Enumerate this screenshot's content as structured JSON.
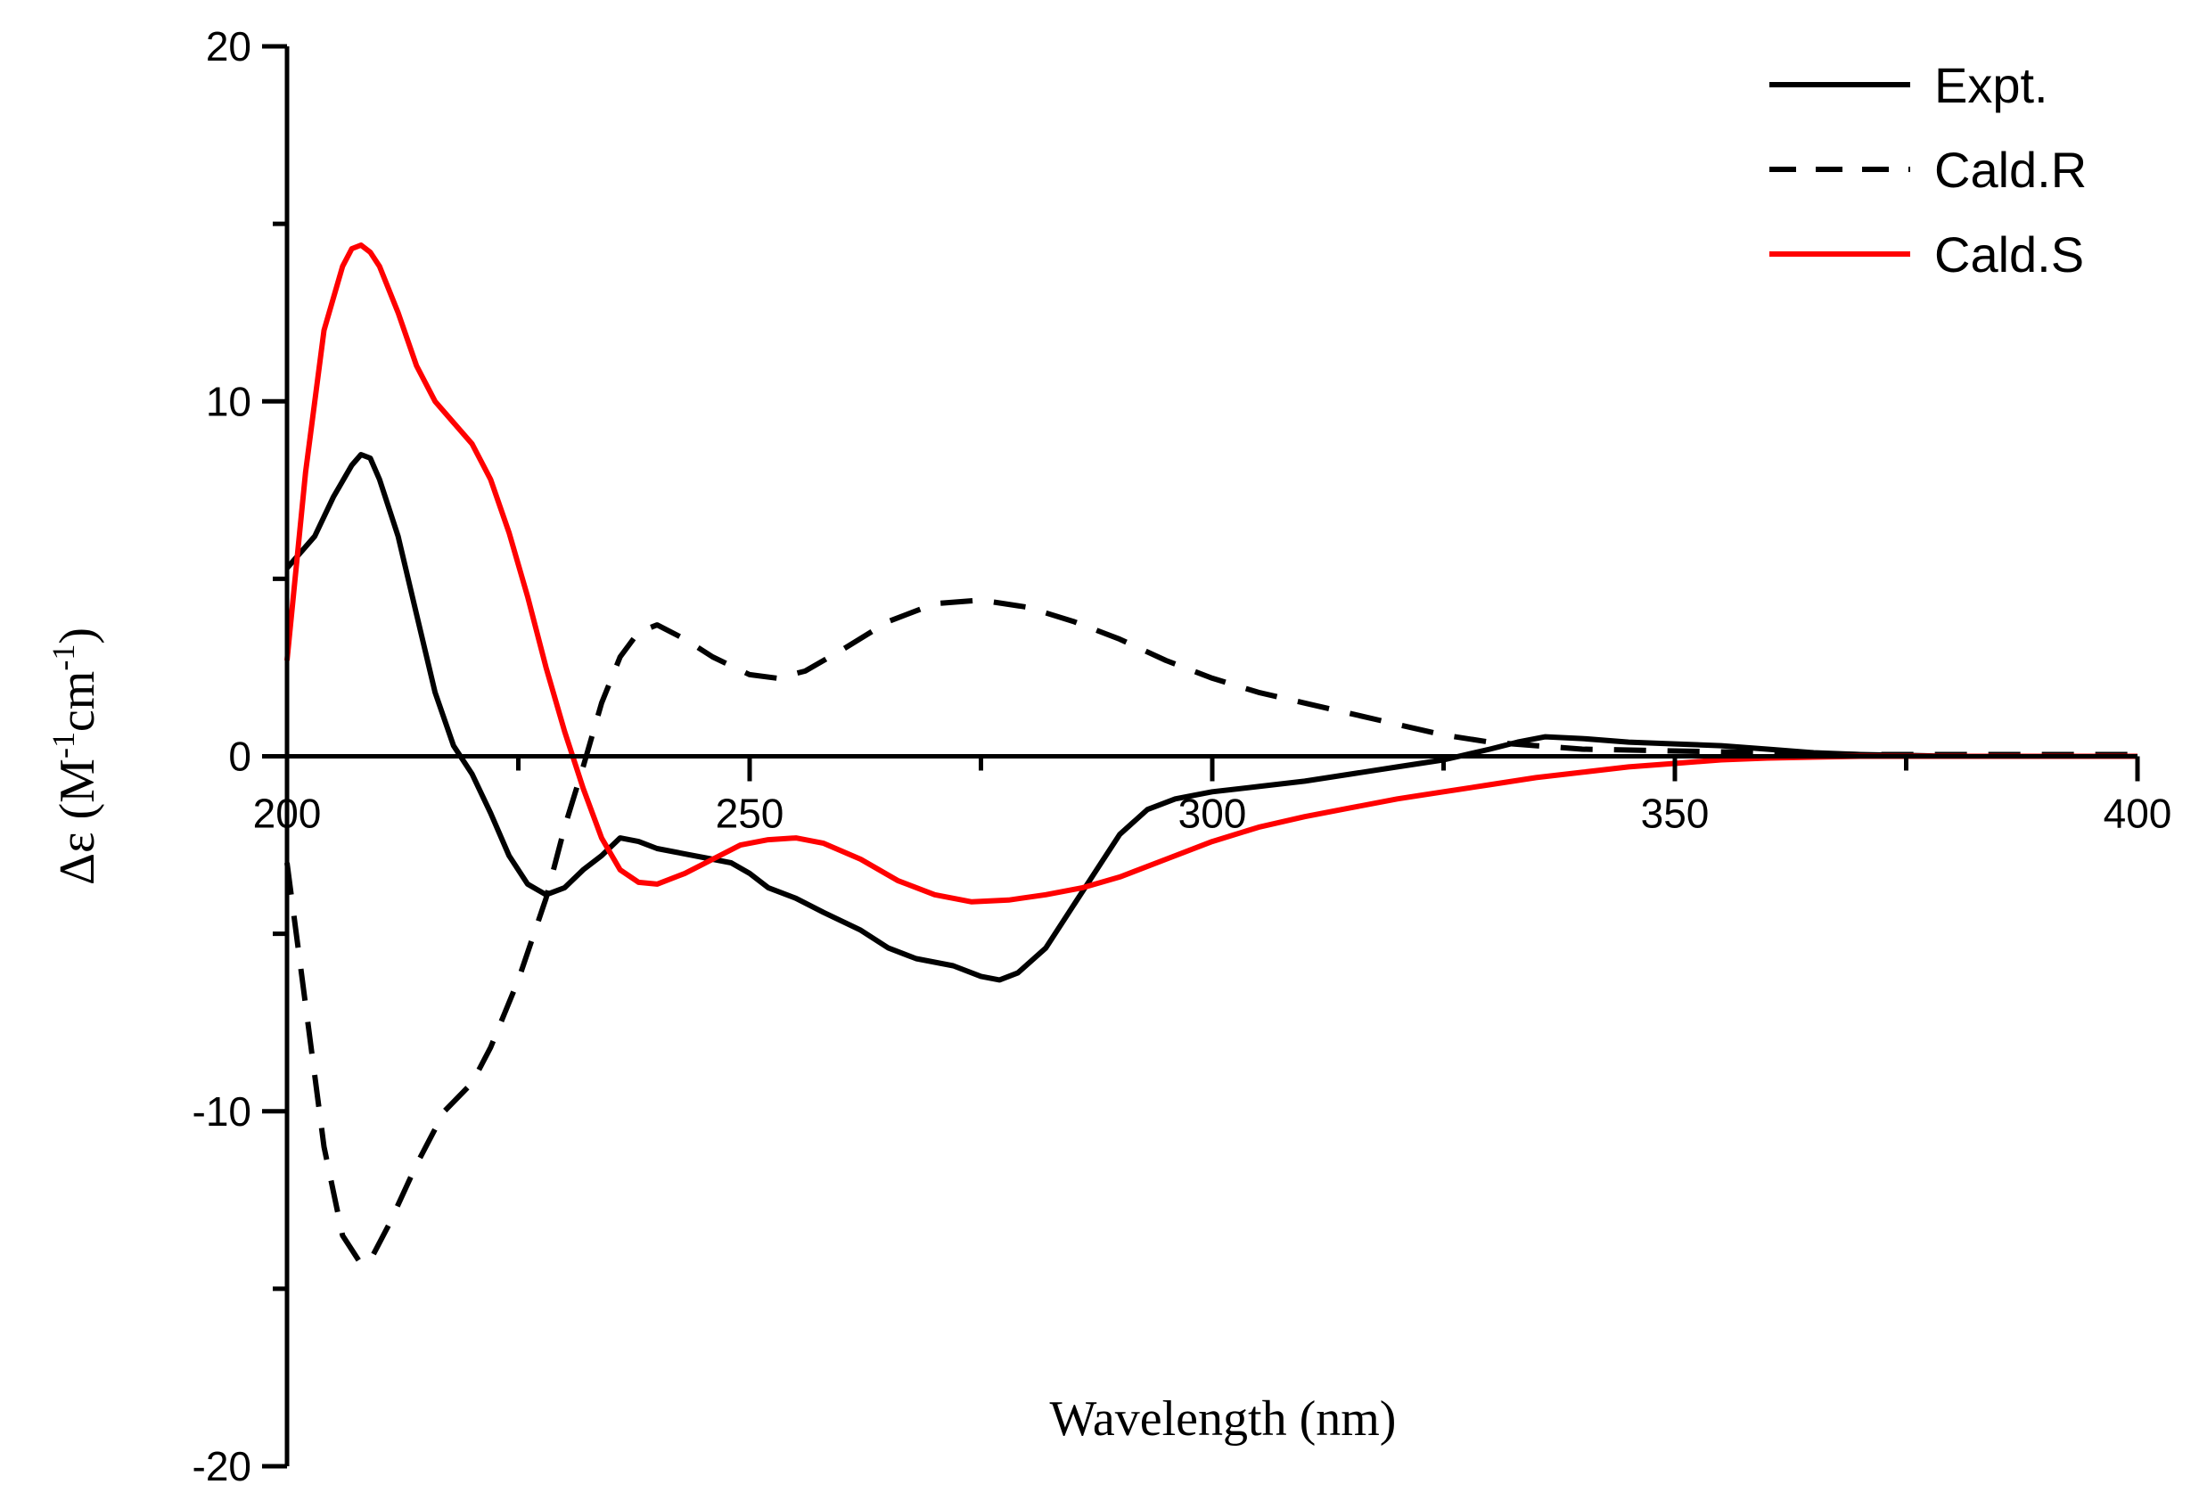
{
  "chart_data": {
    "type": "line",
    "xlabel": "Wavelength (nm)",
    "ylabel": {
      "prefix": "Δε (M",
      "sup1": "-1",
      "middle": "cm",
      "sup2": "-1",
      "suffix": ")"
    },
    "xlim": [
      200,
      400
    ],
    "ylim": [
      -20,
      20
    ],
    "x_ticks": [
      200,
      250,
      300,
      350,
      400
    ],
    "y_ticks": [
      -20,
      -10,
      0,
      10,
      20
    ],
    "legend_position": "top-right",
    "grid": false,
    "series": [
      {
        "name": "Expt.",
        "color": "#000000",
        "dash": "solid",
        "points": [
          [
            200,
            5.3
          ],
          [
            203,
            6.2
          ],
          [
            205,
            7.3
          ],
          [
            207,
            8.2
          ],
          [
            208,
            8.5
          ],
          [
            209,
            8.4
          ],
          [
            210,
            7.8
          ],
          [
            212,
            6.2
          ],
          [
            214,
            4.0
          ],
          [
            216,
            1.8
          ],
          [
            218,
            0.3
          ],
          [
            220,
            -0.5
          ],
          [
            222,
            -1.6
          ],
          [
            224,
            -2.8
          ],
          [
            226,
            -3.6
          ],
          [
            228,
            -3.9
          ],
          [
            230,
            -3.7
          ],
          [
            232,
            -3.2
          ],
          [
            234,
            -2.8
          ],
          [
            236,
            -2.3
          ],
          [
            238,
            -2.4
          ],
          [
            240,
            -2.6
          ],
          [
            242,
            -2.7
          ],
          [
            245,
            -2.85
          ],
          [
            248,
            -3.0
          ],
          [
            250,
            -3.3
          ],
          [
            252,
            -3.7
          ],
          [
            255,
            -4.0
          ],
          [
            258,
            -4.4
          ],
          [
            262,
            -4.9
          ],
          [
            265,
            -5.4
          ],
          [
            268,
            -5.7
          ],
          [
            272,
            -5.9
          ],
          [
            275,
            -6.2
          ],
          [
            277,
            -6.3
          ],
          [
            279,
            -6.1
          ],
          [
            282,
            -5.4
          ],
          [
            285,
            -4.2
          ],
          [
            288,
            -3.0
          ],
          [
            290,
            -2.2
          ],
          [
            293,
            -1.5
          ],
          [
            296,
            -1.2
          ],
          [
            300,
            -1.0
          ],
          [
            305,
            -0.85
          ],
          [
            310,
            -0.7
          ],
          [
            315,
            -0.5
          ],
          [
            320,
            -0.3
          ],
          [
            325,
            -0.1
          ],
          [
            330,
            0.2
          ],
          [
            333,
            0.4
          ],
          [
            336,
            0.55
          ],
          [
            340,
            0.5
          ],
          [
            345,
            0.4
          ],
          [
            350,
            0.35
          ],
          [
            355,
            0.3
          ],
          [
            360,
            0.2
          ],
          [
            365,
            0.1
          ],
          [
            370,
            0.05
          ],
          [
            380,
            0.0
          ],
          [
            390,
            0.0
          ],
          [
            400,
            0.0
          ]
        ]
      },
      {
        "name": "Cald.R",
        "color": "#000000",
        "dash": "dashed",
        "points": [
          [
            200,
            -3.0
          ],
          [
            202,
            -7.0
          ],
          [
            204,
            -11.0
          ],
          [
            206,
            -13.5
          ],
          [
            208,
            -14.3
          ],
          [
            209,
            -14.2
          ],
          [
            211,
            -13.2
          ],
          [
            214,
            -11.5
          ],
          [
            217,
            -10.0
          ],
          [
            220,
            -9.2
          ],
          [
            222,
            -8.2
          ],
          [
            225,
            -6.3
          ],
          [
            228,
            -4.0
          ],
          [
            230,
            -2.0
          ],
          [
            232,
            -0.3
          ],
          [
            234,
            1.5
          ],
          [
            236,
            2.8
          ],
          [
            238,
            3.5
          ],
          [
            240,
            3.7
          ],
          [
            243,
            3.3
          ],
          [
            246,
            2.8
          ],
          [
            250,
            2.3
          ],
          [
            253,
            2.2
          ],
          [
            256,
            2.4
          ],
          [
            260,
            3.0
          ],
          [
            265,
            3.8
          ],
          [
            270,
            4.3
          ],
          [
            275,
            4.4
          ],
          [
            280,
            4.2
          ],
          [
            285,
            3.8
          ],
          [
            290,
            3.3
          ],
          [
            295,
            2.7
          ],
          [
            300,
            2.2
          ],
          [
            305,
            1.8
          ],
          [
            310,
            1.5
          ],
          [
            315,
            1.2
          ],
          [
            320,
            0.9
          ],
          [
            325,
            0.6
          ],
          [
            330,
            0.4
          ],
          [
            335,
            0.3
          ],
          [
            340,
            0.2
          ],
          [
            350,
            0.15
          ],
          [
            360,
            0.1
          ],
          [
            370,
            0.05
          ],
          [
            380,
            0.05
          ],
          [
            390,
            0.05
          ],
          [
            400,
            0.05
          ]
        ]
      },
      {
        "name": "Cald.S",
        "color": "#ff0000",
        "dash": "solid",
        "points": [
          [
            200,
            2.7
          ],
          [
            202,
            8.0
          ],
          [
            204,
            12.0
          ],
          [
            206,
            13.8
          ],
          [
            207,
            14.3
          ],
          [
            208,
            14.4
          ],
          [
            209,
            14.2
          ],
          [
            210,
            13.8
          ],
          [
            212,
            12.5
          ],
          [
            214,
            11.0
          ],
          [
            216,
            10.0
          ],
          [
            218,
            9.4
          ],
          [
            220,
            8.8
          ],
          [
            222,
            7.8
          ],
          [
            224,
            6.3
          ],
          [
            226,
            4.5
          ],
          [
            228,
            2.5
          ],
          [
            230,
            0.7
          ],
          [
            232,
            -0.9
          ],
          [
            234,
            -2.3
          ],
          [
            236,
            -3.2
          ],
          [
            238,
            -3.55
          ],
          [
            240,
            -3.6
          ],
          [
            243,
            -3.3
          ],
          [
            246,
            -2.9
          ],
          [
            249,
            -2.5
          ],
          [
            252,
            -2.35
          ],
          [
            255,
            -2.3
          ],
          [
            258,
            -2.45
          ],
          [
            262,
            -2.9
          ],
          [
            266,
            -3.5
          ],
          [
            270,
            -3.9
          ],
          [
            274,
            -4.1
          ],
          [
            278,
            -4.05
          ],
          [
            282,
            -3.9
          ],
          [
            286,
            -3.7
          ],
          [
            290,
            -3.4
          ],
          [
            295,
            -2.9
          ],
          [
            300,
            -2.4
          ],
          [
            305,
            -2.0
          ],
          [
            310,
            -1.7
          ],
          [
            315,
            -1.45
          ],
          [
            320,
            -1.2
          ],
          [
            325,
            -1.0
          ],
          [
            330,
            -0.8
          ],
          [
            335,
            -0.6
          ],
          [
            340,
            -0.45
          ],
          [
            345,
            -0.3
          ],
          [
            350,
            -0.2
          ],
          [
            355,
            -0.1
          ],
          [
            360,
            -0.05
          ],
          [
            370,
            0.0
          ],
          [
            380,
            0.0
          ],
          [
            390,
            0.0
          ],
          [
            400,
            0.0
          ]
        ]
      }
    ]
  }
}
